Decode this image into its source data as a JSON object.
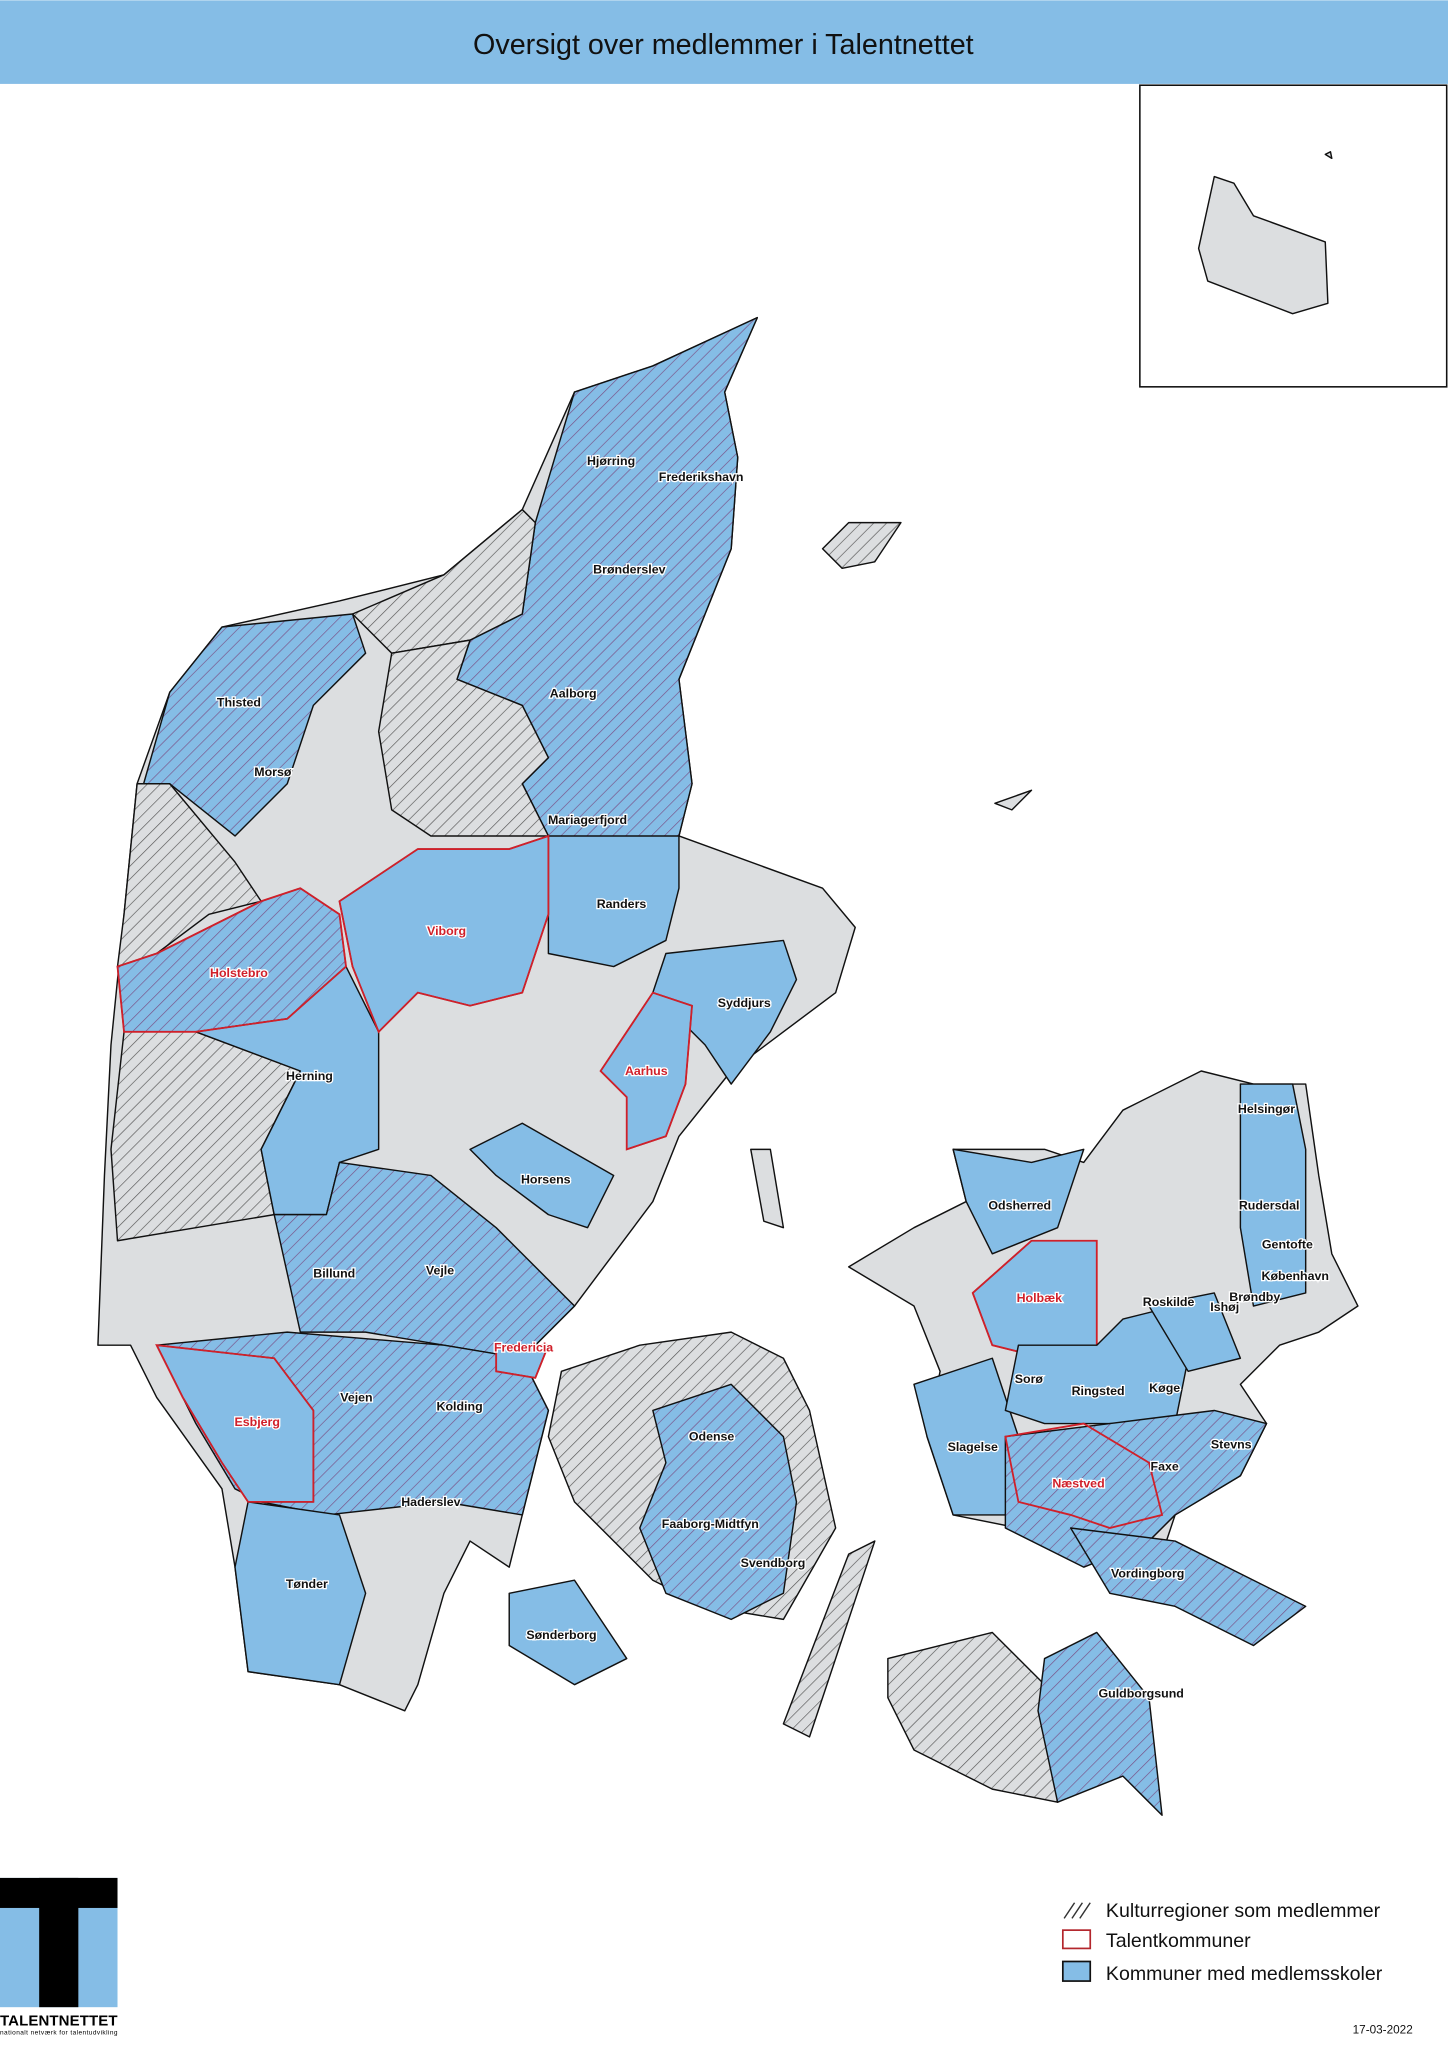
{
  "title": "Oversigt over medlemmer i Talentnettet",
  "colors": {
    "header": "#85bde6",
    "member_fill": "#85bde6",
    "talent_outline": "#d0202a",
    "nonmember_fill": "#dcdee0"
  },
  "labels": [
    {
      "name": "Hjørring",
      "talent": false
    },
    {
      "name": "Frederikshavn",
      "talent": false
    },
    {
      "name": "Brønderslev",
      "talent": false
    },
    {
      "name": "Thisted",
      "talent": false
    },
    {
      "name": "Aalborg",
      "talent": false
    },
    {
      "name": "Morsø",
      "talent": false
    },
    {
      "name": "Mariagerfjord",
      "talent": false
    },
    {
      "name": "Randers",
      "talent": false
    },
    {
      "name": "Viborg",
      "talent": true
    },
    {
      "name": "Holstebro",
      "talent": true
    },
    {
      "name": "Syddjurs",
      "talent": false
    },
    {
      "name": "Aarhus",
      "talent": true
    },
    {
      "name": "Herning",
      "talent": false
    },
    {
      "name": "Horsens",
      "talent": false
    },
    {
      "name": "Billund",
      "talent": false
    },
    {
      "name": "Vejle",
      "talent": false
    },
    {
      "name": "Fredericia",
      "talent": true
    },
    {
      "name": "Vejen",
      "talent": false
    },
    {
      "name": "Kolding",
      "talent": false
    },
    {
      "name": "Esbjerg",
      "talent": true
    },
    {
      "name": "Haderslev",
      "talent": false
    },
    {
      "name": "Odense",
      "talent": false
    },
    {
      "name": "Faaborg-Midtfyn",
      "talent": false
    },
    {
      "name": "Svendborg",
      "talent": false
    },
    {
      "name": "Tønder",
      "talent": false
    },
    {
      "name": "Sønderborg",
      "talent": false
    },
    {
      "name": "Helsingør",
      "talent": false
    },
    {
      "name": "Odsherred",
      "talent": false
    },
    {
      "name": "Rudersdal",
      "talent": false
    },
    {
      "name": "Gentofte",
      "talent": false
    },
    {
      "name": "København",
      "talent": false
    },
    {
      "name": "Holbæk",
      "talent": true
    },
    {
      "name": "Roskilde",
      "talent": false
    },
    {
      "name": "Brøndby",
      "talent": false
    },
    {
      "name": "Ishøj",
      "talent": false
    },
    {
      "name": "Sorø",
      "talent": false
    },
    {
      "name": "Ringsted",
      "talent": false
    },
    {
      "name": "Køge",
      "talent": false
    },
    {
      "name": "Slagelse",
      "talent": false
    },
    {
      "name": "Stevns",
      "talent": false
    },
    {
      "name": "Næstved",
      "talent": true
    },
    {
      "name": "Faxe",
      "talent": false
    },
    {
      "name": "Vordingborg",
      "talent": false
    },
    {
      "name": "Guldborgsund",
      "talent": false
    }
  ],
  "legend": {
    "hatch": "Kulturregioner som medlemmer",
    "talent": "Talentkommuner",
    "member": "Kommuner med medlemsskoler"
  },
  "logo": {
    "name": "TALENTNETTET",
    "tagline": "nationalt netværk for talentudvikling"
  },
  "date": "17-03-2022"
}
